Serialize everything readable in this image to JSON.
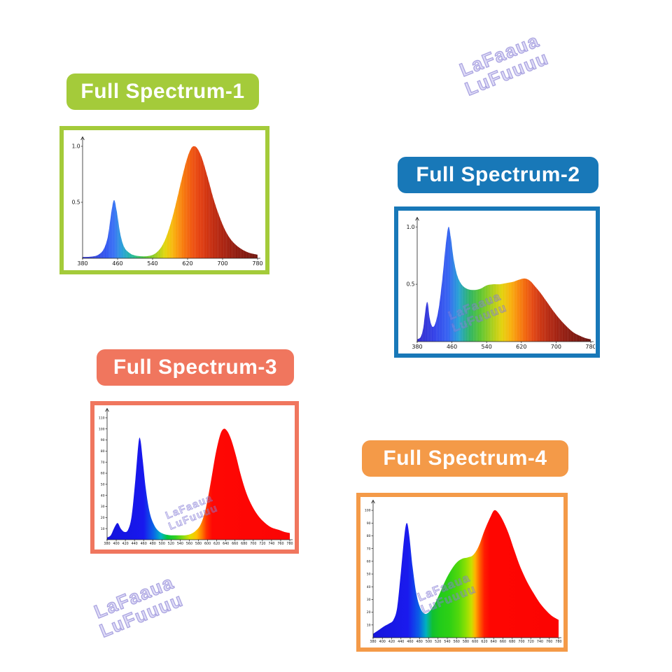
{
  "page": {
    "background": "#ffffff"
  },
  "watermark": {
    "line1": "LaFaaua",
    "line2": "LuFuuuu",
    "color": "#7c72ce"
  },
  "panels": [
    {
      "label": "Full Spectrum-1",
      "accent": "#a4cb3a"
    },
    {
      "label": "Full Spectrum-2",
      "accent": "#1878b8"
    },
    {
      "label": "Full Spectrum-3",
      "accent": "#f0765e"
    },
    {
      "label": "Full Spectrum-4",
      "accent": "#f49a48"
    }
  ],
  "chart_data": [
    {
      "type": "area",
      "title": "Full Spectrum-1",
      "xlim": [
        380,
        780
      ],
      "ylim": [
        0,
        1.05
      ],
      "striped": true,
      "xticks": [
        380,
        460,
        540,
        620,
        700,
        780
      ],
      "yticks": [
        {
          "v": 0.5,
          "label": "0.5"
        },
        {
          "v": 1.0,
          "label": "1.0"
        }
      ],
      "points": [
        [
          380,
          0.012
        ],
        [
          400,
          0.015
        ],
        [
          415,
          0.03
        ],
        [
          428,
          0.08
        ],
        [
          438,
          0.2
        ],
        [
          446,
          0.42
        ],
        [
          452,
          0.52
        ],
        [
          458,
          0.42
        ],
        [
          466,
          0.22
        ],
        [
          475,
          0.1
        ],
        [
          488,
          0.045
        ],
        [
          500,
          0.025
        ],
        [
          515,
          0.018
        ],
        [
          530,
          0.02
        ],
        [
          545,
          0.04
        ],
        [
          558,
          0.09
        ],
        [
          570,
          0.18
        ],
        [
          582,
          0.32
        ],
        [
          594,
          0.5
        ],
        [
          606,
          0.7
        ],
        [
          618,
          0.88
        ],
        [
          628,
          0.98
        ],
        [
          636,
          1.0
        ],
        [
          644,
          0.97
        ],
        [
          654,
          0.88
        ],
        [
          666,
          0.72
        ],
        [
          680,
          0.52
        ],
        [
          695,
          0.35
        ],
        [
          710,
          0.22
        ],
        [
          725,
          0.14
        ],
        [
          742,
          0.085
        ],
        [
          760,
          0.05
        ],
        [
          780,
          0.032
        ]
      ],
      "spectrum_colors": [
        {
          "wl": 380,
          "color": "#2a2ac8"
        },
        {
          "wl": 435,
          "color": "#2850f0"
        },
        {
          "wl": 452,
          "color": "#2f6cf4"
        },
        {
          "wl": 470,
          "color": "#1e9ad8"
        },
        {
          "wl": 495,
          "color": "#18b890"
        },
        {
          "wl": 520,
          "color": "#43c232"
        },
        {
          "wl": 548,
          "color": "#9ccc14"
        },
        {
          "wl": 568,
          "color": "#e0d400"
        },
        {
          "wl": 585,
          "color": "#f8b400"
        },
        {
          "wl": 600,
          "color": "#fa8c00"
        },
        {
          "wl": 615,
          "color": "#f56800"
        },
        {
          "wl": 632,
          "color": "#ee4a04"
        },
        {
          "wl": 650,
          "color": "#e03404"
        },
        {
          "wl": 672,
          "color": "#c62404"
        },
        {
          "wl": 700,
          "color": "#a81804"
        },
        {
          "wl": 730,
          "color": "#8c1004"
        },
        {
          "wl": 780,
          "color": "#6a0a02"
        }
      ]
    },
    {
      "type": "area",
      "title": "Full Spectrum-2",
      "xlim": [
        380,
        780
      ],
      "ylim": [
        0,
        1.05
      ],
      "striped": true,
      "xticks": [
        380,
        460,
        540,
        620,
        700,
        780
      ],
      "yticks": [
        {
          "v": 0.5,
          "label": "0.5"
        },
        {
          "v": 1.0,
          "label": "1.0"
        }
      ],
      "points": [
        [
          380,
          0.02
        ],
        [
          388,
          0.04
        ],
        [
          394,
          0.12
        ],
        [
          400,
          0.3
        ],
        [
          404,
          0.34
        ],
        [
          409,
          0.2
        ],
        [
          415,
          0.13
        ],
        [
          422,
          0.16
        ],
        [
          430,
          0.3
        ],
        [
          438,
          0.55
        ],
        [
          446,
          0.85
        ],
        [
          452,
          1.0
        ],
        [
          457,
          0.92
        ],
        [
          464,
          0.72
        ],
        [
          472,
          0.58
        ],
        [
          482,
          0.5
        ],
        [
          495,
          0.46
        ],
        [
          510,
          0.45
        ],
        [
          525,
          0.46
        ],
        [
          540,
          0.49
        ],
        [
          555,
          0.5
        ],
        [
          570,
          0.5
        ],
        [
          585,
          0.51
        ],
        [
          600,
          0.52
        ],
        [
          615,
          0.54
        ],
        [
          628,
          0.55
        ],
        [
          640,
          0.53
        ],
        [
          652,
          0.48
        ],
        [
          665,
          0.42
        ],
        [
          680,
          0.34
        ],
        [
          695,
          0.26
        ],
        [
          710,
          0.19
        ],
        [
          725,
          0.13
        ],
        [
          740,
          0.08
        ],
        [
          755,
          0.05
        ],
        [
          768,
          0.03
        ],
        [
          780,
          0.02
        ]
      ],
      "spectrum_colors": [
        {
          "wl": 380,
          "color": "#2820c8"
        },
        {
          "wl": 420,
          "color": "#2838e8"
        },
        {
          "wl": 452,
          "color": "#2b5cf2"
        },
        {
          "wl": 475,
          "color": "#1c9cd4"
        },
        {
          "wl": 500,
          "color": "#22b060"
        },
        {
          "wl": 525,
          "color": "#52c226"
        },
        {
          "wl": 552,
          "color": "#a2cc10"
        },
        {
          "wl": 575,
          "color": "#e2d000"
        },
        {
          "wl": 595,
          "color": "#f8ae00"
        },
        {
          "wl": 612,
          "color": "#f88400"
        },
        {
          "wl": 628,
          "color": "#f26000"
        },
        {
          "wl": 645,
          "color": "#e44208"
        },
        {
          "wl": 662,
          "color": "#cc2c06"
        },
        {
          "wl": 685,
          "color": "#b01e06"
        },
        {
          "wl": 710,
          "color": "#961406"
        },
        {
          "wl": 740,
          "color": "#7c0e04"
        },
        {
          "wl": 780,
          "color": "#620804"
        }
      ]
    },
    {
      "type": "area",
      "title": "Full Spectrum-3",
      "xlim": [
        380,
        780
      ],
      "ylim": [
        0,
        115
      ],
      "striped": false,
      "xticks": [
        380,
        400,
        420,
        440,
        460,
        480,
        500,
        520,
        540,
        560,
        580,
        600,
        620,
        640,
        660,
        680,
        700,
        720,
        740,
        760,
        780
      ],
      "yticks": [
        {
          "v": 10,
          "label": "10"
        },
        {
          "v": 20,
          "label": "20"
        },
        {
          "v": 30,
          "label": "30"
        },
        {
          "v": 40,
          "label": "40"
        },
        {
          "v": 50,
          "label": "50"
        },
        {
          "v": 60,
          "label": "60"
        },
        {
          "v": 70,
          "label": "70"
        },
        {
          "v": 80,
          "label": "80"
        },
        {
          "v": 90,
          "label": "90"
        },
        {
          "v": 100,
          "label": "100"
        },
        {
          "v": 110,
          "label": "110"
        }
      ],
      "points": [
        [
          380,
          2
        ],
        [
          388,
          4
        ],
        [
          396,
          11
        ],
        [
          403,
          15
        ],
        [
          410,
          10
        ],
        [
          418,
          7
        ],
        [
          426,
          9
        ],
        [
          434,
          22
        ],
        [
          442,
          55
        ],
        [
          449,
          88
        ],
        [
          453,
          90
        ],
        [
          458,
          72
        ],
        [
          465,
          45
        ],
        [
          473,
          25
        ],
        [
          482,
          14
        ],
        [
          492,
          8
        ],
        [
          505,
          5
        ],
        [
          520,
          4
        ],
        [
          535,
          4
        ],
        [
          550,
          4
        ],
        [
          562,
          5
        ],
        [
          574,
          8
        ],
        [
          585,
          14
        ],
        [
          596,
          28
        ],
        [
          607,
          52
        ],
        [
          617,
          76
        ],
        [
          627,
          94
        ],
        [
          635,
          100
        ],
        [
          643,
          98
        ],
        [
          652,
          90
        ],
        [
          662,
          76
        ],
        [
          673,
          58
        ],
        [
          685,
          42
        ],
        [
          698,
          30
        ],
        [
          712,
          21
        ],
        [
          726,
          15
        ],
        [
          740,
          11
        ],
        [
          755,
          9
        ],
        [
          768,
          7
        ],
        [
          780,
          6
        ]
      ],
      "spectrum_colors": [
        {
          "wl": 380,
          "color": "#1414dc"
        },
        {
          "wl": 460,
          "color": "#1818ee"
        },
        {
          "wl": 482,
          "color": "#0a66e6"
        },
        {
          "wl": 498,
          "color": "#00b4c8"
        },
        {
          "wl": 512,
          "color": "#00c83c"
        },
        {
          "wl": 530,
          "color": "#32d020"
        },
        {
          "wl": 548,
          "color": "#90dc10"
        },
        {
          "wl": 562,
          "color": "#e0e000"
        },
        {
          "wl": 576,
          "color": "#ffc000"
        },
        {
          "wl": 588,
          "color": "#ff7800"
        },
        {
          "wl": 598,
          "color": "#ff3000"
        },
        {
          "wl": 610,
          "color": "#fe0804"
        },
        {
          "wl": 780,
          "color": "#fc0404"
        }
      ]
    },
    {
      "type": "area",
      "title": "Full Spectrum-4",
      "xlim": [
        380,
        780
      ],
      "ylim": [
        0,
        105
      ],
      "striped": false,
      "xticks": [
        380,
        400,
        420,
        440,
        460,
        480,
        500,
        520,
        540,
        560,
        580,
        600,
        620,
        640,
        660,
        680,
        700,
        720,
        740,
        760,
        780
      ],
      "yticks": [
        {
          "v": 10,
          "label": "10"
        },
        {
          "v": 20,
          "label": "20"
        },
        {
          "v": 30,
          "label": "30"
        },
        {
          "v": 40,
          "label": "40"
        },
        {
          "v": 50,
          "label": "50"
        },
        {
          "v": 60,
          "label": "60"
        },
        {
          "v": 70,
          "label": "70"
        },
        {
          "v": 80,
          "label": "80"
        },
        {
          "v": 90,
          "label": "90"
        },
        {
          "v": 100,
          "label": "100"
        }
      ],
      "points": [
        [
          380,
          3
        ],
        [
          392,
          6
        ],
        [
          404,
          9
        ],
        [
          414,
          11
        ],
        [
          424,
          14
        ],
        [
          432,
          24
        ],
        [
          440,
          52
        ],
        [
          448,
          82
        ],
        [
          453,
          90
        ],
        [
          458,
          80
        ],
        [
          465,
          56
        ],
        [
          473,
          35
        ],
        [
          481,
          24
        ],
        [
          490,
          19
        ],
        [
          500,
          20
        ],
        [
          512,
          26
        ],
        [
          524,
          35
        ],
        [
          536,
          45
        ],
        [
          548,
          53
        ],
        [
          560,
          59
        ],
        [
          572,
          62
        ],
        [
          584,
          63
        ],
        [
          596,
          65
        ],
        [
          608,
          72
        ],
        [
          620,
          84
        ],
        [
          632,
          94
        ],
        [
          641,
          100
        ],
        [
          650,
          98
        ],
        [
          660,
          92
        ],
        [
          672,
          82
        ],
        [
          685,
          68
        ],
        [
          698,
          55
        ],
        [
          712,
          44
        ],
        [
          726,
          35
        ],
        [
          740,
          27
        ],
        [
          754,
          21
        ],
        [
          766,
          17
        ],
        [
          780,
          14
        ]
      ],
      "spectrum_colors": [
        {
          "wl": 380,
          "color": "#1616dc"
        },
        {
          "wl": 455,
          "color": "#1a1aee"
        },
        {
          "wl": 478,
          "color": "#0a5ce8"
        },
        {
          "wl": 494,
          "color": "#00b0c0"
        },
        {
          "wl": 508,
          "color": "#10c030"
        },
        {
          "wl": 525,
          "color": "#22cc1a"
        },
        {
          "wl": 545,
          "color": "#2ed014"
        },
        {
          "wl": 565,
          "color": "#54d80c"
        },
        {
          "wl": 580,
          "color": "#8ce004"
        },
        {
          "wl": 592,
          "color": "#c8e000"
        },
        {
          "wl": 600,
          "color": "#ffb400"
        },
        {
          "wl": 610,
          "color": "#ff6000"
        },
        {
          "wl": 620,
          "color": "#ff1c02"
        },
        {
          "wl": 632,
          "color": "#fe0602"
        },
        {
          "wl": 780,
          "color": "#fc0402"
        }
      ]
    }
  ]
}
